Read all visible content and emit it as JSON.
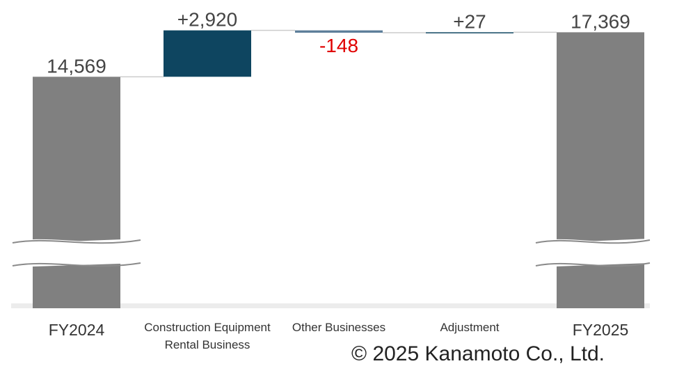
{
  "chart_data": {
    "type": "waterfall",
    "categories": [
      "FY2024",
      "Construction Equipment Rental Business",
      "Other Businesses",
      "Adjustment",
      "FY2025"
    ],
    "values": [
      14569,
      2920,
      -148,
      27,
      17369
    ],
    "value_labels": [
      "14,569",
      "+2,920",
      "-148",
      "+27",
      "17,369"
    ],
    "colors": {
      "total": "#808080",
      "increase": "#0e4560",
      "decrease": "#5d7f9a",
      "negative_label": "#e00000"
    },
    "ylim": [
      0,
      19400
    ],
    "footer": "© 2025 Kanamoto Co., Ltd."
  }
}
